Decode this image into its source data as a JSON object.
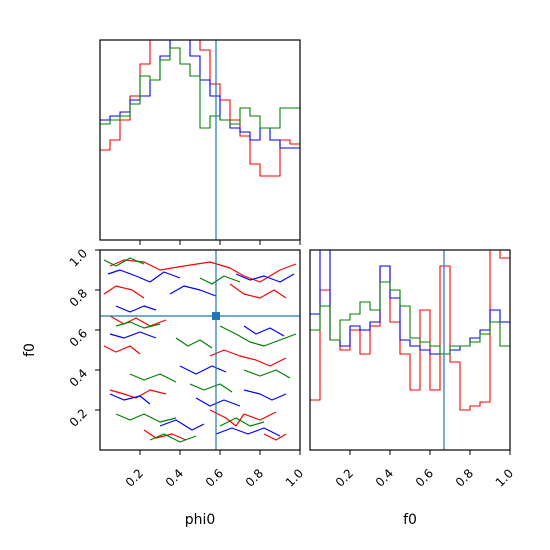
{
  "chart_data": [
    {
      "type": "step-histogram",
      "panel": "phi0 marginal",
      "xlim": [
        0,
        1
      ],
      "bin_edges": [
        0,
        0.05,
        0.1,
        0.15,
        0.2,
        0.25,
        0.3,
        0.35,
        0.4,
        0.45,
        0.5,
        0.55,
        0.6,
        0.65,
        0.7,
        0.75,
        0.8,
        0.85,
        0.9,
        0.95,
        1.0
      ],
      "truth": 0.58,
      "truth_color": "#1f77b4",
      "series": [
        {
          "color": "#ff0000",
          "values": [
            0.45,
            0.5,
            0.6,
            0.72,
            0.88,
            1.05,
            1.08,
            1.1,
            1.1,
            1.02,
            0.95,
            0.78,
            0.7,
            0.6,
            0.52,
            0.38,
            0.32,
            0.32,
            0.5,
            0.48
          ]
        },
        {
          "color": "#0000ff",
          "values": [
            0.6,
            0.62,
            0.64,
            0.7,
            0.72,
            0.8,
            0.92,
            1.02,
            1.05,
            0.92,
            0.8,
            0.72,
            0.6,
            0.56,
            0.54,
            0.5,
            0.56,
            0.5,
            0.46,
            0.46
          ]
        },
        {
          "color": "#008000",
          "values": [
            0.58,
            0.6,
            0.62,
            0.68,
            0.82,
            0.8,
            0.9,
            0.96,
            0.88,
            0.82,
            0.56,
            0.62,
            0.6,
            0.58,
            0.66,
            0.62,
            0.56,
            0.56,
            0.66,
            0.66
          ]
        }
      ]
    },
    {
      "type": "contour",
      "panel": "phi0 vs f0 joint",
      "xlabel": "phi0",
      "ylabel": "f0",
      "xlim": [
        0,
        1
      ],
      "ylim": [
        0,
        1
      ],
      "xticks": [
        "0.2",
        "0.4",
        "0.6",
        "0.8",
        "1.0"
      ],
      "yticks": [
        "0.2",
        "0.4",
        "0.6",
        "0.8",
        "1.0"
      ],
      "truth": [
        0.58,
        0.67
      ],
      "truth_color": "#1f77b4",
      "series": [
        {
          "color": "#ff0000",
          "paths": [
            [
              [
                0.05,
                0.92
              ],
              [
                0.12,
                0.95
              ],
              [
                0.22,
                0.94
              ],
              [
                0.3,
                0.9
              ],
              [
                0.42,
                0.92
              ],
              [
                0.55,
                0.94
              ],
              [
                0.65,
                0.91
              ],
              [
                0.72,
                0.87
              ],
              [
                0.8,
                0.84
              ],
              [
                0.9,
                0.9
              ],
              [
                0.98,
                0.93
              ]
            ],
            [
              [
                0.02,
                0.78
              ],
              [
                0.08,
                0.82
              ],
              [
                0.16,
                0.8
              ],
              [
                0.22,
                0.76
              ]
            ],
            [
              [
                0.65,
                0.83
              ],
              [
                0.72,
                0.78
              ],
              [
                0.8,
                0.76
              ],
              [
                0.87,
                0.8
              ],
              [
                0.93,
                0.76
              ]
            ],
            [
              [
                0.05,
                0.67
              ],
              [
                0.12,
                0.63
              ],
              [
                0.18,
                0.66
              ],
              [
                0.25,
                0.62
              ],
              [
                0.33,
                0.65
              ]
            ],
            [
              [
                0.02,
                0.52
              ],
              [
                0.08,
                0.49
              ],
              [
                0.15,
                0.52
              ],
              [
                0.2,
                0.48
              ]
            ],
            [
              [
                0.55,
                0.47
              ],
              [
                0.62,
                0.5
              ],
              [
                0.7,
                0.47
              ],
              [
                0.78,
                0.45
              ],
              [
                0.85,
                0.42
              ],
              [
                0.93,
                0.46
              ]
            ],
            [
              [
                0.05,
                0.3
              ],
              [
                0.12,
                0.28
              ],
              [
                0.18,
                0.26
              ],
              [
                0.25,
                0.3
              ],
              [
                0.33,
                0.28
              ]
            ],
            [
              [
                0.55,
                0.2
              ],
              [
                0.63,
                0.16
              ],
              [
                0.68,
                0.12
              ],
              [
                0.72,
                0.18
              ],
              [
                0.8,
                0.15
              ],
              [
                0.88,
                0.19
              ]
            ],
            [
              [
                0.22,
                0.1
              ],
              [
                0.28,
                0.06
              ],
              [
                0.36,
                0.08
              ],
              [
                0.43,
                0.05
              ]
            ],
            [
              [
                0.82,
                0.08
              ],
              [
                0.88,
                0.05
              ],
              [
                0.93,
                0.08
              ]
            ]
          ]
        },
        {
          "color": "#0000ff",
          "paths": [
            [
              [
                0.04,
                0.88
              ],
              [
                0.1,
                0.9
              ],
              [
                0.18,
                0.87
              ],
              [
                0.25,
                0.84
              ],
              [
                0.32,
                0.89
              ],
              [
                0.4,
                0.86
              ]
            ],
            [
              [
                0.35,
                0.78
              ],
              [
                0.42,
                0.82
              ],
              [
                0.5,
                0.8
              ],
              [
                0.58,
                0.77
              ]
            ],
            [
              [
                0.68,
                0.88
              ],
              [
                0.75,
                0.85
              ],
              [
                0.82,
                0.87
              ],
              [
                0.9,
                0.84
              ],
              [
                0.97,
                0.88
              ]
            ],
            [
              [
                0.08,
                0.72
              ],
              [
                0.15,
                0.69
              ],
              [
                0.22,
                0.72
              ],
              [
                0.28,
                0.7
              ]
            ],
            [
              [
                0.72,
                0.62
              ],
              [
                0.78,
                0.58
              ],
              [
                0.85,
                0.61
              ],
              [
                0.92,
                0.57
              ]
            ],
            [
              [
                0.05,
                0.58
              ],
              [
                0.12,
                0.56
              ],
              [
                0.2,
                0.59
              ],
              [
                0.28,
                0.56
              ]
            ],
            [
              [
                0.4,
                0.42
              ],
              [
                0.48,
                0.38
              ],
              [
                0.56,
                0.42
              ],
              [
                0.63,
                0.39
              ]
            ],
            [
              [
                0.05,
                0.28
              ],
              [
                0.12,
                0.25
              ],
              [
                0.2,
                0.27
              ],
              [
                0.25,
                0.23
              ]
            ],
            [
              [
                0.48,
                0.26
              ],
              [
                0.55,
                0.22
              ],
              [
                0.62,
                0.25
              ],
              [
                0.7,
                0.22
              ]
            ],
            [
              [
                0.72,
                0.3
              ],
              [
                0.8,
                0.28
              ],
              [
                0.86,
                0.25
              ],
              [
                0.93,
                0.28
              ]
            ],
            [
              [
                0.3,
                0.12
              ],
              [
                0.38,
                0.15
              ],
              [
                0.46,
                0.1
              ],
              [
                0.52,
                0.13
              ]
            ],
            [
              [
                0.58,
                0.08
              ],
              [
                0.66,
                0.11
              ],
              [
                0.74,
                0.08
              ],
              [
                0.82,
                0.11
              ],
              [
                0.9,
                0.07
              ]
            ]
          ]
        },
        {
          "color": "#008000",
          "paths": [
            [
              [
                0.02,
                0.95
              ],
              [
                0.08,
                0.92
              ],
              [
                0.15,
                0.96
              ],
              [
                0.22,
                0.93
              ]
            ],
            [
              [
                0.5,
                0.86
              ],
              [
                0.56,
                0.83
              ],
              [
                0.62,
                0.87
              ],
              [
                0.7,
                0.84
              ]
            ],
            [
              [
                0.08,
                0.62
              ],
              [
                0.15,
                0.64
              ],
              [
                0.22,
                0.61
              ],
              [
                0.3,
                0.63
              ]
            ],
            [
              [
                0.38,
                0.56
              ],
              [
                0.44,
                0.52
              ],
              [
                0.5,
                0.55
              ],
              [
                0.56,
                0.51
              ]
            ],
            [
              [
                0.6,
                0.62
              ],
              [
                0.68,
                0.58
              ],
              [
                0.75,
                0.54
              ],
              [
                0.82,
                0.52
              ],
              [
                0.9,
                0.55
              ],
              [
                0.98,
                0.58
              ]
            ],
            [
              [
                0.15,
                0.38
              ],
              [
                0.22,
                0.35
              ],
              [
                0.3,
                0.38
              ],
              [
                0.38,
                0.34
              ]
            ],
            [
              [
                0.45,
                0.33
              ],
              [
                0.52,
                0.3
              ],
              [
                0.6,
                0.33
              ],
              [
                0.66,
                0.29
              ]
            ],
            [
              [
                0.72,
                0.4
              ],
              [
                0.8,
                0.37
              ],
              [
                0.88,
                0.4
              ],
              [
                0.95,
                0.36
              ]
            ],
            [
              [
                0.08,
                0.18
              ],
              [
                0.15,
                0.15
              ],
              [
                0.22,
                0.18
              ],
              [
                0.3,
                0.14
              ],
              [
                0.38,
                0.16
              ]
            ],
            [
              [
                0.25,
                0.05
              ],
              [
                0.32,
                0.08
              ],
              [
                0.4,
                0.04
              ],
              [
                0.48,
                0.07
              ]
            ],
            [
              [
                0.6,
                0.12
              ],
              [
                0.68,
                0.16
              ],
              [
                0.75,
                0.12
              ],
              [
                0.82,
                0.14
              ]
            ]
          ]
        }
      ]
    },
    {
      "type": "step-histogram",
      "panel": "f0 marginal",
      "xlabel": "f0",
      "xlim": [
        0,
        1
      ],
      "xticks": [
        "0.2",
        "0.4",
        "0.6",
        "0.8",
        "1.0"
      ],
      "bin_edges": [
        0,
        0.05,
        0.1,
        0.15,
        0.2,
        0.25,
        0.3,
        0.35,
        0.4,
        0.45,
        0.5,
        0.55,
        0.6,
        0.65,
        0.7,
        0.75,
        0.8,
        0.85,
        0.9,
        0.95,
        1.0
      ],
      "truth": 0.67,
      "truth_color": "#1f77b4",
      "series": [
        {
          "color": "#ff0000",
          "values": [
            0.25,
            0.8,
            0.55,
            0.5,
            0.6,
            0.48,
            0.62,
            0.92,
            0.64,
            0.48,
            0.3,
            0.7,
            0.3,
            0.92,
            0.44,
            0.2,
            0.22,
            0.24,
            1.12,
            0.96
          ]
        },
        {
          "color": "#0000ff",
          "values": [
            0.68,
            1.05,
            0.55,
            0.52,
            0.62,
            0.6,
            0.64,
            0.92,
            0.76,
            0.55,
            0.52,
            0.5,
            0.48,
            0.48,
            0.5,
            0.52,
            0.56,
            0.6,
            0.7,
            0.64
          ]
        },
        {
          "color": "#008000",
          "values": [
            0.6,
            0.72,
            0.55,
            0.65,
            0.68,
            0.74,
            0.7,
            0.84,
            0.8,
            0.72,
            0.56,
            0.54,
            0.52,
            0.48,
            0.52,
            0.52,
            0.54,
            0.58,
            0.64,
            0.52
          ]
        }
      ]
    }
  ]
}
